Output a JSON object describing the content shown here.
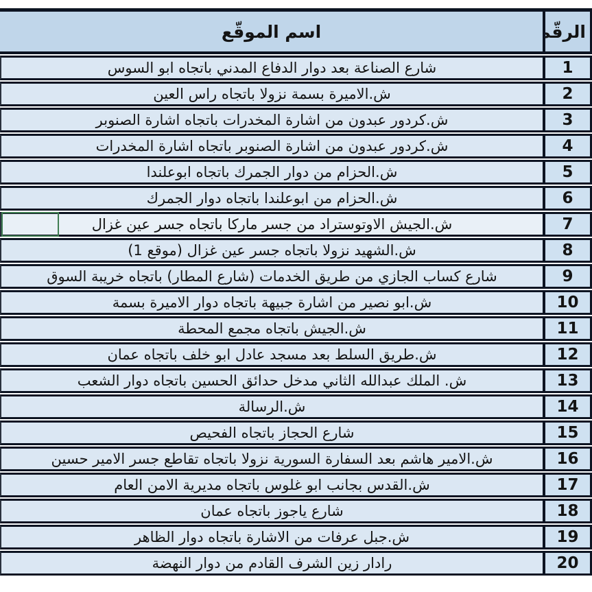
{
  "table": {
    "headers": {
      "location": "اسم الموقّع",
      "number": "الرقّم"
    },
    "rows": [
      {
        "number": "1",
        "location": "شارع الصناعة بعد دوار الدفاع المدني باتجاه ابو السوس"
      },
      {
        "number": "2",
        "location": "ش.الاميرة بسمة نزولا باتجاه راس العين"
      },
      {
        "number": "3",
        "location": "ش.كردور عبدون من اشارة المخدرات باتجاه اشارة الصنوبر"
      },
      {
        "number": "4",
        "location": "ش.كردور عبدون من اشارة الصنوبر باتجاه اشارة المخدرات"
      },
      {
        "number": "5",
        "location": "ش.الحزام من دوار الجمرك باتجاه ابوعلندا"
      },
      {
        "number": "6",
        "location": "ش.الحزام من ابوعلندا باتجاه دوار الجمرك"
      },
      {
        "number": "7",
        "location": "ش.الجيش الاوتوستراد من جسر ماركا باتجاه جسر عين غزال"
      },
      {
        "number": "8",
        "location": "ش.الشهيد نزولا باتجاه جسر عين غزال (موقع 1)"
      },
      {
        "number": "9",
        "location": "شارع كساب الجازي من طريق الخدمات (شارع المطار) باتجاه خريبة السوق"
      },
      {
        "number": "10",
        "location": "ش.ابو نصير من اشارة جبيهة باتجاه دوار الاميرة بسمة"
      },
      {
        "number": "11",
        "location": "ش.الجيش باتجاه مجمع المحطة"
      },
      {
        "number": "12",
        "location": "ش.طريق السلط بعد مسجد عادل ابو خلف باتجاه عمان"
      },
      {
        "number": "13",
        "location": "ش. الملك عبدالله الثاني مدخل حدائق الحسين باتجاه دوار الشعب"
      },
      {
        "number": "14",
        "location": "ش.الرسالة"
      },
      {
        "number": "15",
        "location": "شارع الحجاز باتجاه الفحيص"
      },
      {
        "number": "16",
        "location": "ش.الامير هاشم بعد السفارة السورية نزولا باتجاه تقاطع جسر الامير حسين"
      },
      {
        "number": "17",
        "location": "ش.القدس بجانب ابو غلوس باتجاه مديرية الامن العام"
      },
      {
        "number": "18",
        "location": "شارع ياجوز باتجاه عمان"
      },
      {
        "number": "19",
        "location": "ش.جبل عرفات من الاشارة باتجاه دوار الظاهر"
      },
      {
        "number": "20",
        "location": "رادار زين الشرف القادم من دوار النهضة"
      }
    ],
    "selected_row_number": "7"
  },
  "colors": {
    "header_bg": "#c0d6ea",
    "location_cell_bg": "#dbe7f3",
    "number_cell_bg": "#cfe1f1",
    "selected_row_bg": "#e9f0f7",
    "border": "#0d1422",
    "selection_outline": "#3f7d52",
    "text": "#141414"
  }
}
